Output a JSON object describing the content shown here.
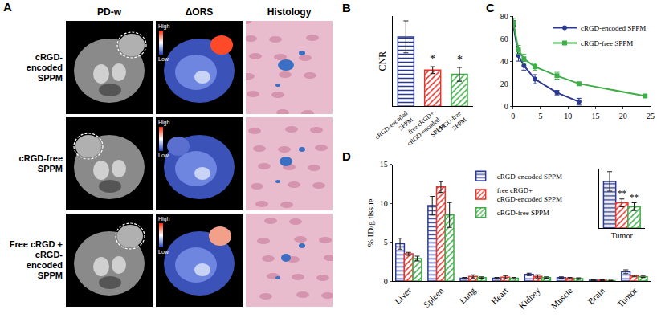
{
  "panel_a": {
    "label": "A",
    "columns": [
      "PD-w",
      "ΔORS",
      "Histology"
    ],
    "rows": [
      "cRGD-encoded SPPM",
      "cRGD-free SPPM",
      "Free cRGD + cRGD-encoded SPPM"
    ],
    "colorbar_labels": [
      "High",
      "Low"
    ]
  },
  "chart_data": [
    {
      "panel": "B",
      "type": "bar",
      "categories": [
        "cRGD-encoded SPPM",
        "free cRGD+ cRGD-encoded SPPM",
        "cRGD-free SPPM"
      ],
      "values": [
        10,
        5.2,
        4.6
      ],
      "errors": [
        2.3,
        0.5,
        1.0
      ],
      "colors": [
        "#2b3990",
        "#e8332a",
        "#3fae49"
      ],
      "ylabel": "CNR",
      "ylim": [
        0,
        13
      ],
      "tick_labels": "x",
      "significance": [
        null,
        "*",
        "*"
      ]
    },
    {
      "panel": "C",
      "type": "line",
      "x": [
        0.083,
        1,
        2,
        4,
        8,
        12,
        24
      ],
      "xlim": [
        0,
        25
      ],
      "xticks": [
        0,
        5,
        10,
        15,
        20,
        25
      ],
      "ylim": [
        0,
        80
      ],
      "yticks": [
        0,
        20,
        40,
        60,
        80
      ],
      "legend": "top-right",
      "series": [
        {
          "name": "cRGD-encoded SPPM",
          "color": "#2b3990",
          "marker": "circle",
          "values": [
            72,
            45,
            36,
            24,
            12,
            4,
            null
          ],
          "errors": [
            4,
            5,
            4,
            4,
            2,
            3,
            null
          ]
        },
        {
          "name": "cRGD-free SPPM",
          "color": "#3fae49",
          "marker": "square",
          "values": [
            74,
            50,
            42,
            35,
            27,
            20,
            9
          ],
          "errors": [
            4,
            4,
            4,
            3,
            3,
            1,
            1
          ]
        }
      ]
    },
    {
      "panel": "D",
      "type": "bar",
      "categories": [
        "Liver",
        "Spleen",
        "Lung",
        "Heart",
        "Kidney",
        "Muscle",
        "Brain",
        "Tumor"
      ],
      "ylabel": "% ID/g tissue",
      "ylim": [
        0,
        15
      ],
      "yticks": [
        0,
        5,
        10,
        15
      ],
      "legend": "top",
      "series": [
        {
          "name": "cRGD-encoded SPPM",
          "color": "#2b3990",
          "values": [
            4.8,
            9.7,
            0.35,
            0.35,
            0.85,
            0.45,
            0.1,
            1.2
          ],
          "errors": [
            0.7,
            1.2,
            0.1,
            0.1,
            0.15,
            0.1,
            0.05,
            0.25
          ]
        },
        {
          "name": "free cRGD+ cRGD-encoded SPPM",
          "color": "#e8332a",
          "values": [
            3.5,
            12.1,
            0.6,
            0.5,
            0.6,
            0.35,
            0.1,
            0.65
          ],
          "errors": [
            0.2,
            0.7,
            0.2,
            0.2,
            0.2,
            0.1,
            0.05,
            0.1
          ]
        },
        {
          "name": "cRGD-free SPPM",
          "color": "#3fae49",
          "values": [
            2.9,
            8.5,
            0.45,
            0.35,
            0.45,
            0.3,
            0.05,
            0.55
          ],
          "errors": [
            0.3,
            1.6,
            0.1,
            0.1,
            0.1,
            0.1,
            0.05,
            0.1
          ]
        }
      ],
      "inset": {
        "category": "Tumor",
        "ylim": [
          0,
          1.5
        ],
        "tick_labels": "x",
        "significance": [
          null,
          "**",
          "**"
        ]
      }
    }
  ]
}
